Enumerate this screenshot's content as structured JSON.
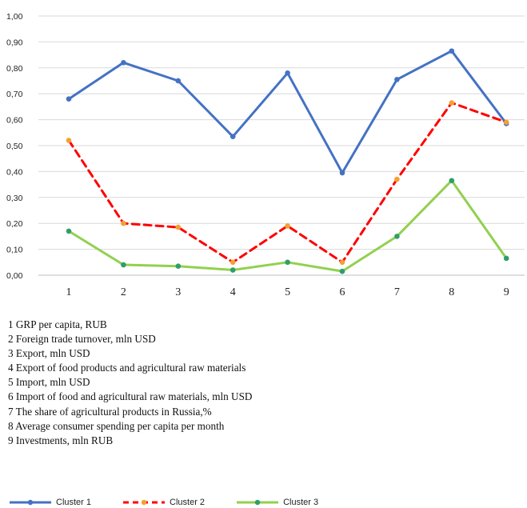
{
  "chart_data": {
    "type": "line",
    "x": [
      1,
      2,
      3,
      4,
      5,
      6,
      7,
      8,
      9
    ],
    "ylim": [
      0,
      1
    ],
    "y_ticks": [
      "0,00",
      "0,10",
      "0,20",
      "0,30",
      "0,40",
      "0,50",
      "0,60",
      "0,70",
      "0,80",
      "0,90",
      "1,00"
    ],
    "x_ticks": [
      "1",
      "2",
      "3",
      "4",
      "5",
      "6",
      "7",
      "8",
      "9"
    ],
    "grid": "horizontal",
    "legend_position": "bottom",
    "series": [
      {
        "name": "Cluster 1",
        "color": "#4472c4",
        "dash": "solid",
        "values": [
          0.68,
          0.82,
          0.75,
          0.535,
          0.78,
          0.395,
          0.755,
          0.865,
          0.585
        ]
      },
      {
        "name": "Cluster 2",
        "color": "#ff0000",
        "marker_color": "#f5a033",
        "dash": "dashed",
        "values": [
          0.52,
          0.2,
          0.185,
          0.05,
          0.19,
          0.05,
          0.37,
          0.665,
          0.59
        ]
      },
      {
        "name": "Cluster 3",
        "color": "#92d050",
        "marker_color": "#2e9e6b",
        "dash": "solid",
        "values": [
          0.17,
          0.04,
          0.035,
          0.02,
          0.05,
          0.015,
          0.15,
          0.365,
          0.065
        ]
      }
    ],
    "notes": [
      "1 GRP per capita, RUB",
      "2 Foreign trade turnover, mln USD",
      "3 Export, mln USD",
      "4 Export of food products and agricultural raw materials",
      "5 Import, mln USD",
      "6 Import of food and agricultural raw materials, mln USD",
      "7 The share of agricultural products in Russia,%",
      "8 Average consumer spending per capita per month",
      "9 Investments, mln RUB"
    ]
  }
}
